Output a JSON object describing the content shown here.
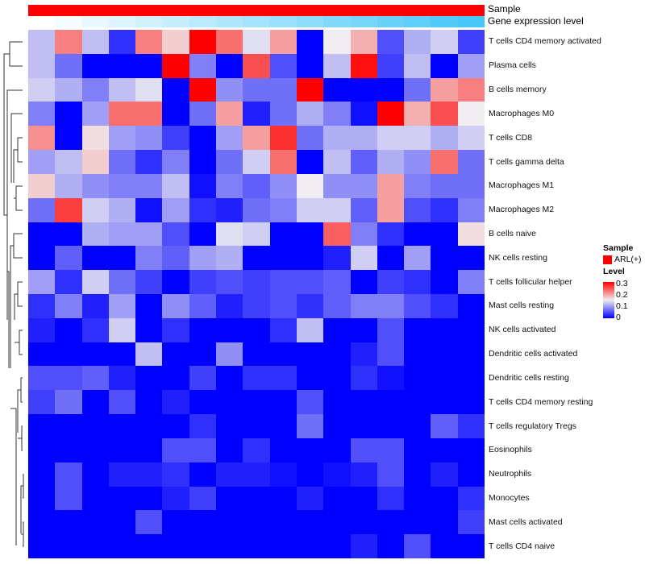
{
  "annotations": {
    "sample_label": "Sample",
    "gene_label": "Gene expression level",
    "sample_color": "#FF0000",
    "gene_colors": [
      "#FFFFFF",
      "#48C8F8"
    ]
  },
  "legend": {
    "sample_title": "Sample",
    "sample_item": "ARL(+)",
    "level_title": "Level",
    "ticks": [
      "0.3",
      "0.2",
      "0.1",
      "0"
    ]
  },
  "chart_data": {
    "type": "heatmap",
    "title": "",
    "color_scale": {
      "min": 0,
      "mid": 0.15,
      "max": 0.3,
      "low": "#0000FF",
      "midcolor": "#F0EEF0",
      "high": "#FF0000"
    },
    "columns": 17,
    "rows": [
      "T cells CD4 memory activated",
      "Plasma cells",
      "B cells memory",
      "Macrophages M0",
      "T cells CD8",
      "T cells gamma delta",
      "Macrophages M1",
      "Macrophages M2",
      "B cells naive",
      "NK cells resting",
      "T cells follicular helper",
      "Mast cells resting",
      "NK cells activated",
      "Dendritic cells activated",
      "Dendritic cells resting",
      "T cells CD4 memory resting",
      "T cells regulatory  Tregs",
      "Eosinophils",
      "Neutrophils",
      "Monocytes",
      "Mast cells activated",
      "T cells CD4 naive"
    ],
    "values": [
      [
        0.12,
        0.22,
        0.12,
        0.03,
        0.22,
        0.17,
        0.3,
        0.23,
        0.14,
        0.2,
        0,
        0.15,
        0.19,
        0.05,
        0.11,
        0.13,
        0.04
      ],
      [
        0.12,
        0.07,
        0,
        0,
        0,
        0.3,
        0.08,
        0,
        0.25,
        0.05,
        0,
        0.12,
        0.29,
        0.04,
        0.12,
        0,
        0.1
      ],
      [
        0.13,
        0.11,
        0.08,
        0.12,
        0.14,
        0,
        0.3,
        0.09,
        0.07,
        0.07,
        0.3,
        0,
        0,
        0,
        0.07,
        0.2,
        0.22
      ],
      [
        0.08,
        0,
        0.1,
        0.23,
        0.23,
        0,
        0.07,
        0.2,
        0.02,
        0.07,
        0.11,
        0.08,
        0.01,
        0.3,
        0.19,
        0.25,
        0.15
      ],
      [
        0.21,
        0,
        0.16,
        0.1,
        0.09,
        0.04,
        0,
        0.1,
        0.2,
        0.27,
        0.07,
        0.11,
        0.11,
        0.13,
        0.13,
        0.11,
        0.13
      ],
      [
        0.1,
        0.12,
        0.17,
        0.07,
        0.03,
        0.08,
        0,
        0.07,
        0.13,
        0.23,
        0,
        0.12,
        0.06,
        0.11,
        0.09,
        0.23,
        0.07
      ],
      [
        0.17,
        0.11,
        0.09,
        0.08,
        0.08,
        0.12,
        0.01,
        0.08,
        0.06,
        0.09,
        0.15,
        0.09,
        0.09,
        0.2,
        0.08,
        0.07,
        0.07
      ],
      [
        0.07,
        0.26,
        0.13,
        0.11,
        0.01,
        0.1,
        0.03,
        0.02,
        0.07,
        0.08,
        0.13,
        0.13,
        0.06,
        0.2,
        0.05,
        0.03,
        0.08
      ],
      [
        0,
        0,
        0.11,
        0.1,
        0.1,
        0.05,
        0,
        0.14,
        0.13,
        0,
        0,
        0.24,
        0.08,
        0.03,
        0,
        0,
        0.16
      ],
      [
        0,
        0.06,
        0,
        0,
        0.08,
        0.06,
        0.1,
        0.11,
        0,
        0,
        0,
        0.02,
        0.13,
        0,
        0.1,
        0,
        0
      ],
      [
        0.1,
        0.03,
        0.13,
        0.07,
        0.04,
        0,
        0.04,
        0.05,
        0.04,
        0.05,
        0.05,
        0.06,
        0,
        0.04,
        0.03,
        0,
        0.08
      ],
      [
        0.03,
        0.08,
        0.02,
        0.1,
        0,
        0.09,
        0.06,
        0.02,
        0.04,
        0.05,
        0.03,
        0.06,
        0.08,
        0.08,
        0.05,
        0.03,
        0
      ],
      [
        0.02,
        0,
        0.03,
        0.13,
        0,
        0.03,
        0,
        0,
        0,
        0.03,
        0.12,
        0,
        0,
        0.05,
        0,
        0,
        0
      ],
      [
        0,
        0,
        0,
        0,
        0.12,
        0,
        0,
        0.09,
        0,
        0,
        0,
        0,
        0.02,
        0.05,
        0,
        0,
        0
      ],
      [
        0.05,
        0.05,
        0.06,
        0.02,
        0,
        0,
        0.04,
        0,
        0.03,
        0.03,
        0,
        0,
        0.03,
        0.01,
        0,
        0,
        0
      ],
      [
        0.04,
        0.07,
        0,
        0.05,
        0,
        0.02,
        0,
        0,
        0,
        0,
        0.05,
        0,
        0,
        0,
        0,
        0,
        0
      ],
      [
        0,
        0,
        0,
        0,
        0,
        0,
        0.03,
        0,
        0,
        0,
        0.07,
        0,
        0,
        0,
        0,
        0.06,
        0.03
      ],
      [
        0,
        0,
        0,
        0,
        0,
        0.05,
        0.05,
        0,
        0.03,
        0,
        0,
        0,
        0.05,
        0.05,
        0,
        0,
        0
      ],
      [
        0,
        0.05,
        0,
        0.02,
        0.02,
        0.03,
        0,
        0.02,
        0.02,
        0.01,
        0,
        0.01,
        0.02,
        0.05,
        0,
        0.02,
        0
      ],
      [
        0,
        0.05,
        0,
        0,
        0,
        0.02,
        0.04,
        0,
        0,
        0,
        0.02,
        0,
        0,
        0.03,
        0,
        0,
        0.03
      ],
      [
        0,
        0,
        0,
        0,
        0.05,
        0,
        0,
        0,
        0,
        0,
        0,
        0,
        0,
        0,
        0,
        0,
        0.04
      ],
      [
        0,
        0,
        0,
        0,
        0,
        0,
        0,
        0,
        0,
        0,
        0,
        0,
        0.02,
        0,
        0.05,
        0,
        0
      ]
    ]
  }
}
